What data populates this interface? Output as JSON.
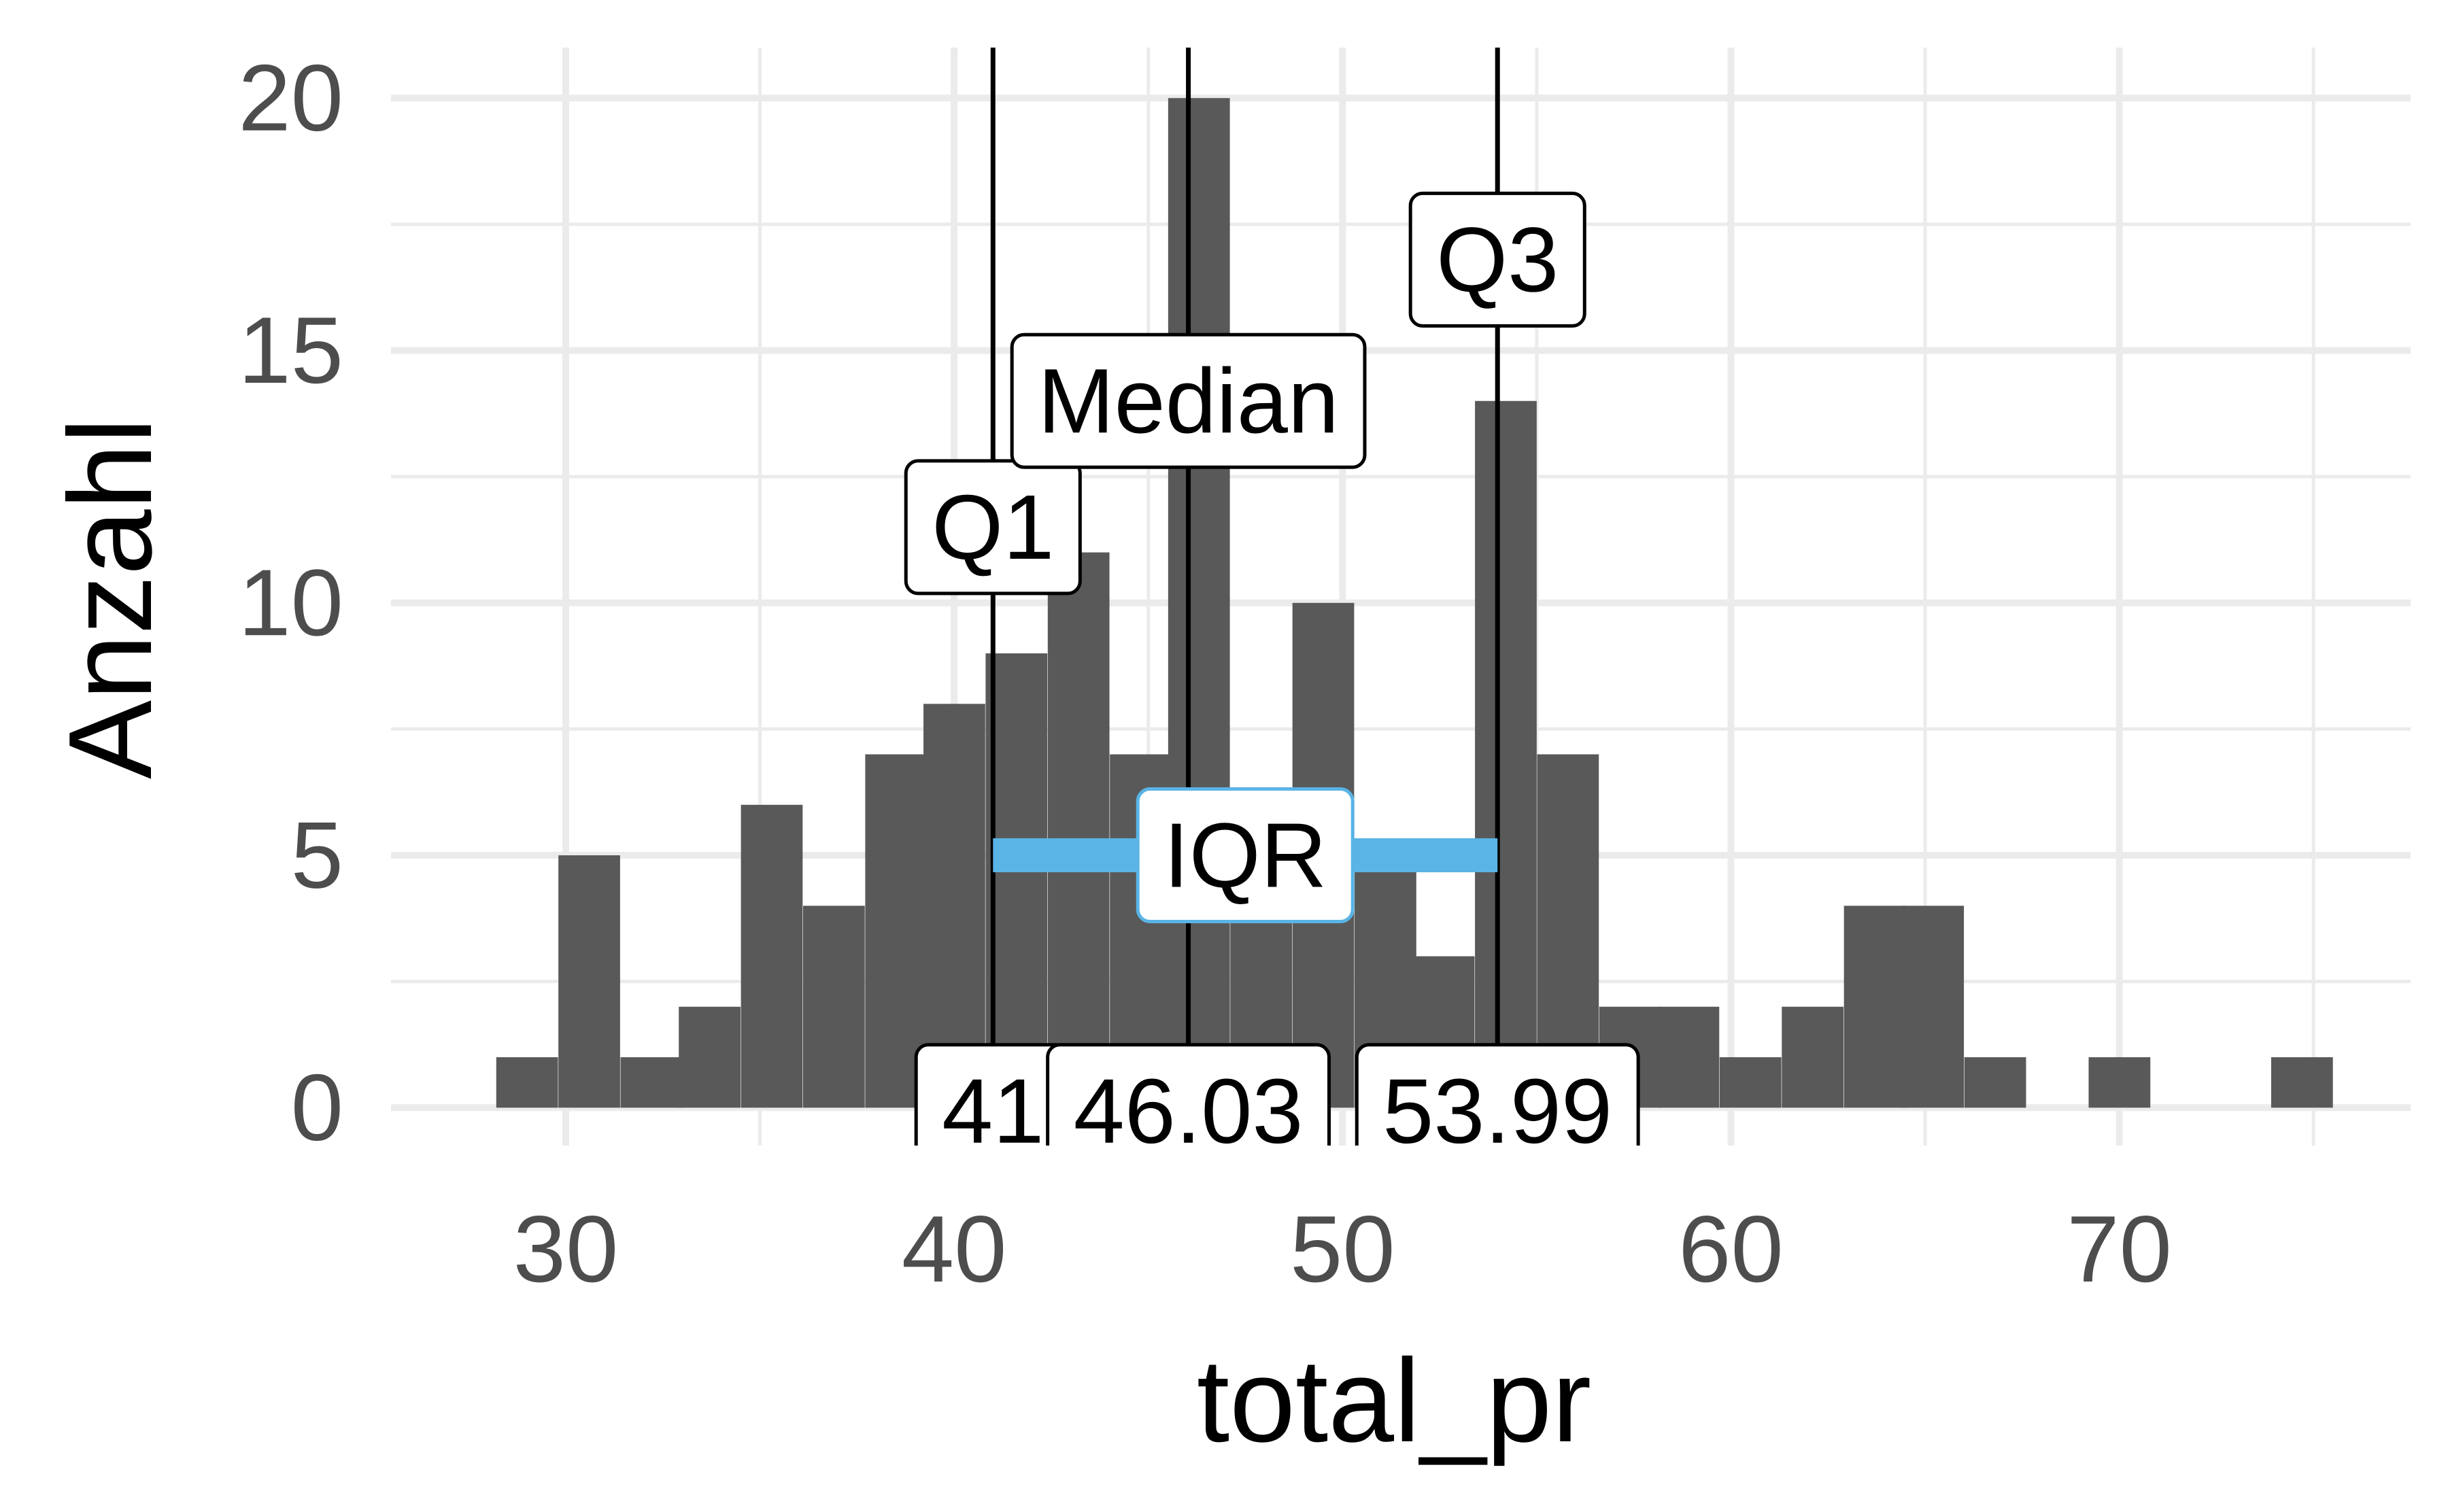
{
  "chart_data": {
    "type": "bar",
    "xlabel": "total_pr",
    "ylabel": "Anzahl",
    "xlim": [
      25.5,
      77.5
    ],
    "ylim": [
      -0.75,
      21
    ],
    "x_ticks": [
      30,
      40,
      50,
      60,
      70
    ],
    "x_tick_labels": [
      "30",
      "40",
      "50",
      "60",
      "70"
    ],
    "y_ticks": [
      0,
      5,
      10,
      15,
      20
    ],
    "y_tick_labels": [
      "0",
      "5",
      "10",
      "15",
      "20"
    ],
    "grid": true,
    "bin_width": 1.58,
    "bins": [
      {
        "x": 29.0,
        "count": 1
      },
      {
        "x": 30.6,
        "count": 5
      },
      {
        "x": 32.2,
        "count": 1
      },
      {
        "x": 33.7,
        "count": 2
      },
      {
        "x": 35.3,
        "count": 6
      },
      {
        "x": 36.9,
        "count": 4
      },
      {
        "x": 38.5,
        "count": 7
      },
      {
        "x": 40.0,
        "count": 8
      },
      {
        "x": 41.6,
        "count": 9
      },
      {
        "x": 43.2,
        "count": 11
      },
      {
        "x": 44.8,
        "count": 7
      },
      {
        "x": 46.3,
        "count": 20
      },
      {
        "x": 47.9,
        "count": 6
      },
      {
        "x": 49.5,
        "count": 10
      },
      {
        "x": 51.1,
        "count": 5
      },
      {
        "x": 52.6,
        "count": 3
      },
      {
        "x": 54.2,
        "count": 14
      },
      {
        "x": 55.8,
        "count": 7
      },
      {
        "x": 57.4,
        "count": 2
      },
      {
        "x": 58.9,
        "count": 2
      },
      {
        "x": 60.5,
        "count": 1
      },
      {
        "x": 62.1,
        "count": 2
      },
      {
        "x": 63.7,
        "count": 4
      },
      {
        "x": 65.2,
        "count": 4
      },
      {
        "x": 66.8,
        "count": 1
      },
      {
        "x": 68.4,
        "count": 0
      },
      {
        "x": 70.0,
        "count": 1
      },
      {
        "x": 71.5,
        "count": 0
      },
      {
        "x": 73.1,
        "count": 0
      },
      {
        "x": 74.7,
        "count": 1
      }
    ],
    "bar_color": "#595959",
    "vlines": [
      {
        "name": "Q1",
        "x": 41.0,
        "label": "Q1",
        "label_y": 11.5,
        "value_label": "41"
      },
      {
        "name": "Median",
        "x": 46.03,
        "label": "Median",
        "label_y": 14.0,
        "value_label": "46.03"
      },
      {
        "name": "Q3",
        "x": 53.99,
        "label": "Q3",
        "label_y": 16.8,
        "value_label": "53.99"
      }
    ],
    "iqr": {
      "from": 41.0,
      "to": 53.99,
      "y": 5,
      "label": "IQR",
      "color": "#5ab4e5"
    }
  }
}
